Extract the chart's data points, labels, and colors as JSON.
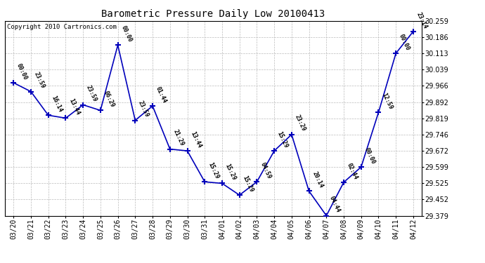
{
  "title": "Barometric Pressure Daily Low 20100413",
  "copyright": "Copyright 2010 Cartronics.com",
  "x_labels": [
    "03/20",
    "03/21",
    "03/22",
    "03/23",
    "03/24",
    "03/25",
    "03/26",
    "03/27",
    "03/28",
    "03/29",
    "03/30",
    "03/31",
    "04/01",
    "04/02",
    "04/03",
    "04/04",
    "04/05",
    "04/06",
    "04/07",
    "04/08",
    "04/09",
    "04/10",
    "04/11",
    "04/12"
  ],
  "y_values": [
    29.98,
    29.94,
    29.833,
    29.82,
    29.88,
    29.855,
    30.15,
    29.81,
    29.875,
    29.68,
    29.672,
    29.532,
    29.525,
    29.472,
    29.532,
    29.672,
    29.746,
    29.49,
    29.379,
    29.53,
    29.599,
    29.846,
    30.113,
    30.212
  ],
  "point_labels": [
    "00:00",
    "23:59",
    "16:14",
    "13:44",
    "23:59",
    "06:29",
    "00:00",
    "23:59",
    "01:44",
    "21:29",
    "13:44",
    "15:29",
    "15:29",
    "15:29",
    "04:59",
    "15:29",
    "23:29",
    "20:14",
    "04:44",
    "02:44",
    "00:00",
    "12:59",
    "00:00",
    "23:14"
  ],
  "line_color": "#0000bb",
  "marker_color": "#0000bb",
  "background_color": "#ffffff",
  "grid_color": "#bbbbbb",
  "y_min": 29.379,
  "y_max": 30.259,
  "y_ticks": [
    29.379,
    29.452,
    29.525,
    29.599,
    29.672,
    29.746,
    29.819,
    29.892,
    29.966,
    30.039,
    30.113,
    30.186,
    30.259
  ],
  "label_fontsize": 6.0,
  "title_fontsize": 10,
  "tick_fontsize": 7,
  "copyright_fontsize": 6.5
}
